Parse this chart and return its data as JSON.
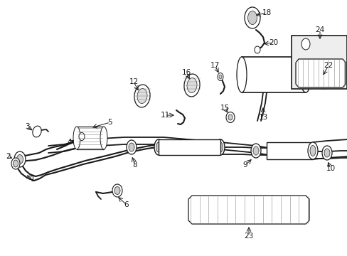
{
  "background_color": "#ffffff",
  "line_color": "#1a1a1a",
  "gray": "#888888",
  "light_gray": "#cccccc",
  "fig_w": 4.89,
  "fig_h": 3.6,
  "dpi": 100
}
